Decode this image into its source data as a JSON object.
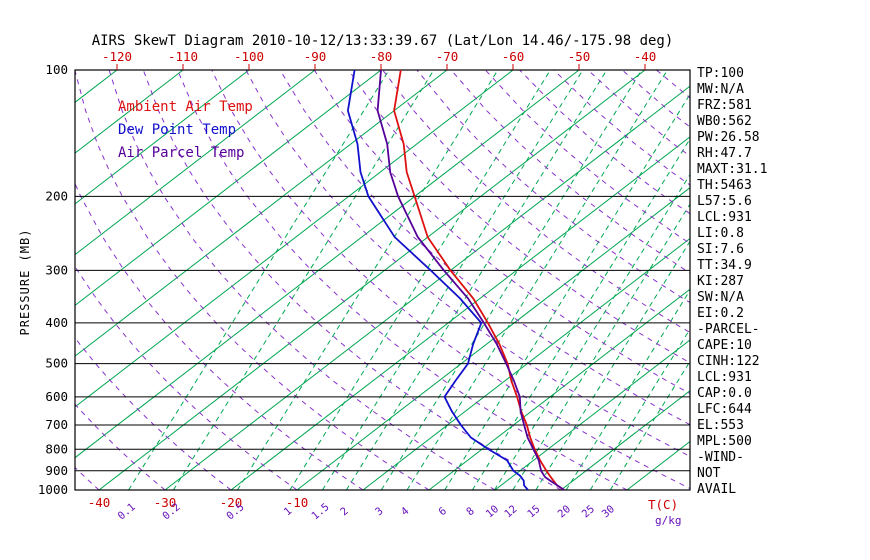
{
  "title": "AIRS SkewT Diagram 2010-10-12/13:33:39.67 (Lat/Lon 14.46/-175.98 deg)",
  "y_axis_label": "PRESSURE (MB)",
  "legend": [
    {
      "label": "Ambient Air Temp",
      "color": "#dd1111"
    },
    {
      "label": "Dew Point Temp",
      "color": "#1111cc"
    },
    {
      "label": "Air Parcel Temp",
      "color": "#550099"
    }
  ],
  "stats_panel": {
    "lines": [
      "TP:100",
      "MW:N/A",
      "FRZ:581",
      "WB0:562",
      "PW:26.58",
      "RH:47.7",
      "MAXT:31.1",
      "TH:5463",
      "L57:5.6",
      "LCL:931",
      "LI:0.8",
      "SI:7.6",
      "TT:34.9",
      "KI:287",
      "SW:N/A",
      "EI:0.2",
      "-PARCEL-",
      "CAPE:10",
      "CINH:122",
      "LCL:931",
      "CAP:0.0",
      "LFC:644",
      "EL:553",
      "MPL:500",
      "-WIND-",
      "NOT",
      "AVAIL"
    ]
  },
  "colors": {
    "isotherm": "#00a651",
    "mixing_line": "#00a651",
    "dry_adiabat": "#8833cc",
    "pressure_line": "#000000",
    "border": "#000000",
    "temp_axis_text": "#cc0000",
    "mixing_axis_text": "#6611bb",
    "pressure_text": "#000000"
  },
  "chart_data": {
    "type": "line",
    "subtype": "skewt-logp",
    "y_axis": {
      "label": "PRESSURE (MB)",
      "scale": "log",
      "ticks": [
        100,
        200,
        300,
        400,
        500,
        600,
        700,
        800,
        900,
        1000
      ],
      "range": [
        100,
        1000
      ]
    },
    "x_axis": {
      "label": "T(C)",
      "top_ticks": [
        -120,
        -110,
        -100,
        -90,
        -80,
        -70,
        -60,
        -50,
        -40
      ],
      "bottom_ticks": [
        -40,
        -30,
        -20,
        -10
      ],
      "unit_label": "T(C)"
    },
    "mixing_axis": {
      "values": [
        0.1,
        0.2,
        0.5,
        1,
        1.5,
        2,
        3,
        4,
        6,
        8,
        10,
        12,
        15,
        20,
        25,
        30
      ],
      "unit_label": "g/kg"
    },
    "isotherms": {
      "min": -120,
      "max": 40,
      "step": 10
    },
    "dry_adiabats": {
      "min": -40,
      "max": 190,
      "step": 10
    },
    "series": [
      {
        "name": "Ambient Air Temp",
        "color": "#dd1111",
        "points": [
          [
            1000,
            30.5
          ],
          [
            975,
            28.5
          ],
          [
            950,
            27
          ],
          [
            925,
            25.5
          ],
          [
            900,
            24
          ],
          [
            850,
            21
          ],
          [
            800,
            18
          ],
          [
            750,
            15
          ],
          [
            700,
            12
          ],
          [
            650,
            8.5
          ],
          [
            600,
            5
          ],
          [
            550,
            1
          ],
          [
            500,
            -3
          ],
          [
            450,
            -8
          ],
          [
            400,
            -14
          ],
          [
            350,
            -21
          ],
          [
            300,
            -30
          ],
          [
            250,
            -40
          ],
          [
            200,
            -50
          ],
          [
            175,
            -56
          ],
          [
            150,
            -62
          ],
          [
            125,
            -70
          ],
          [
            100,
            -77
          ]
        ]
      },
      {
        "name": "Dew Point Temp",
        "color": "#1111cc",
        "points": [
          [
            1000,
            25
          ],
          [
            975,
            23.5
          ],
          [
            950,
            22.5
          ],
          [
            925,
            21
          ],
          [
            900,
            19
          ],
          [
            850,
            16
          ],
          [
            800,
            11
          ],
          [
            750,
            6
          ],
          [
            700,
            2
          ],
          [
            650,
            -2
          ],
          [
            600,
            -6
          ],
          [
            550,
            -7.5
          ],
          [
            500,
            -9
          ],
          [
            450,
            -12
          ],
          [
            400,
            -15
          ],
          [
            350,
            -23
          ],
          [
            300,
            -33
          ],
          [
            250,
            -45
          ],
          [
            200,
            -57
          ],
          [
            175,
            -63
          ],
          [
            150,
            -69
          ],
          [
            125,
            -77
          ],
          [
            100,
            -84
          ]
        ]
      },
      {
        "name": "Air Parcel Temp",
        "color": "#550099",
        "points": [
          [
            1000,
            30.5
          ],
          [
            950,
            26.5
          ],
          [
            931,
            25
          ],
          [
            900,
            23.2
          ],
          [
            850,
            20.8
          ],
          [
            800,
            17.8
          ],
          [
            750,
            14.6
          ],
          [
            700,
            11.6
          ],
          [
            650,
            8.4
          ],
          [
            600,
            5.4
          ],
          [
            550,
            1.4
          ],
          [
            500,
            -3.2
          ],
          [
            450,
            -8.4
          ],
          [
            400,
            -14.6
          ],
          [
            350,
            -21.8
          ],
          [
            300,
            -31
          ],
          [
            250,
            -41.5
          ],
          [
            200,
            -52.5
          ],
          [
            175,
            -58.5
          ],
          [
            150,
            -64.5
          ],
          [
            125,
            -72.5
          ],
          [
            100,
            -80
          ]
        ]
      }
    ]
  }
}
